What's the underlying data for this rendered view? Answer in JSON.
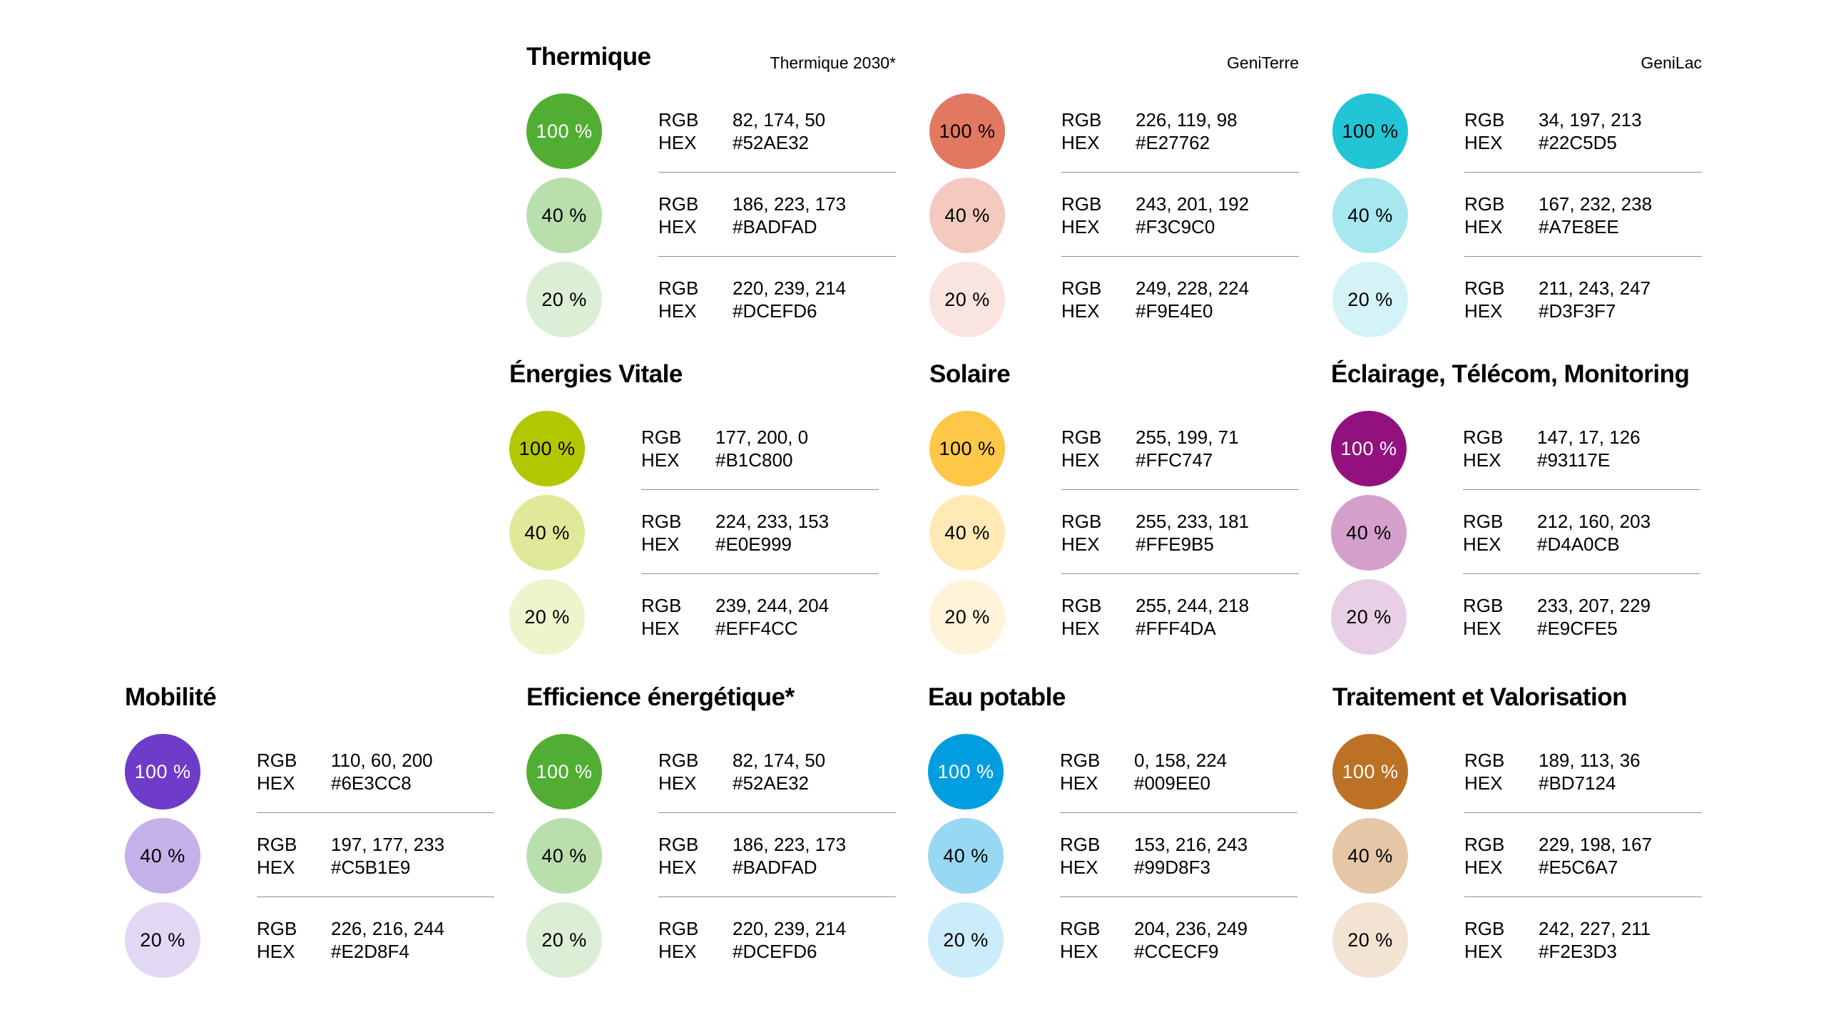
{
  "page": {
    "background": "#FFFFFF",
    "text_color": "#000000",
    "divider_color": "#8F8F8F"
  },
  "labels": {
    "rgb": "RGB",
    "hex": "HEX"
  },
  "palettes": [
    {
      "title": "Thermique",
      "corner_label": "Thermique 2030*",
      "shades": [
        {
          "percent": "100 %",
          "rgb": "82, 174, 50",
          "hex": "#52AE32",
          "label_color": "#FFFFFF"
        },
        {
          "percent": "40 %",
          "rgb": "186, 223, 173",
          "hex": "#BADFAD",
          "label_color": "#000000"
        },
        {
          "percent": "20 %",
          "rgb": "220, 239, 214",
          "hex": "#DCEFD6",
          "label_color": "#000000"
        }
      ]
    },
    {
      "corner_label": "GeniTerre",
      "shades": [
        {
          "percent": "100 %",
          "rgb": "226, 119, 98",
          "hex": "#E27762",
          "label_color": "#000000"
        },
        {
          "percent": "40 %",
          "rgb": "243, 201, 192",
          "hex": "#F3C9C0",
          "label_color": "#000000"
        },
        {
          "percent": "20 %",
          "rgb": "249, 228, 224",
          "hex": "#F9E4E0",
          "label_color": "#000000"
        }
      ]
    },
    {
      "corner_label": "GeniLac",
      "shades": [
        {
          "percent": "100 %",
          "rgb": "34, 197, 213",
          "hex": "#22C5D5",
          "label_color": "#000000"
        },
        {
          "percent": "40 %",
          "rgb": "167, 232, 238",
          "hex": "#A7E8EE",
          "label_color": "#000000"
        },
        {
          "percent": "20 %",
          "rgb": "211, 243, 247",
          "hex": "#D3F3F7",
          "label_color": "#000000"
        }
      ]
    },
    {
      "title": "Énergies Vitale",
      "shades": [
        {
          "percent": "100 %",
          "rgb": "177, 200, 0",
          "hex": "#B1C800",
          "label_color": "#000000"
        },
        {
          "percent": "40 %",
          "rgb": "224, 233, 153",
          "hex": "#E0E999",
          "label_color": "#000000"
        },
        {
          "percent": "20 %",
          "rgb": "239, 244, 204",
          "hex": "#EFF4CC",
          "label_color": "#000000"
        }
      ]
    },
    {
      "title": "Solaire",
      "shades": [
        {
          "percent": "100 %",
          "rgb": "255, 199, 71",
          "hex": "#FFC747",
          "label_color": "#000000"
        },
        {
          "percent": "40 %",
          "rgb": "255, 233, 181",
          "hex": "#FFE9B5",
          "label_color": "#000000"
        },
        {
          "percent": "20 %",
          "rgb": "255, 244, 218",
          "hex": "#FFF4DA",
          "label_color": "#000000"
        }
      ]
    },
    {
      "title": "Éclairage, Télécom, Monitoring",
      "shades": [
        {
          "percent": "100 %",
          "rgb": "147, 17, 126",
          "hex": "#93117E",
          "label_color": "#FFFFFF"
        },
        {
          "percent": "40 %",
          "rgb": "212, 160, 203",
          "hex": "#D4A0CB",
          "label_color": "#000000"
        },
        {
          "percent": "20 %",
          "rgb": "233, 207, 229",
          "hex": "#E9CFE5",
          "label_color": "#000000"
        }
      ]
    },
    {
      "title": "Mobilité",
      "shades": [
        {
          "percent": "100 %",
          "rgb": "110, 60, 200",
          "hex": "#6E3CC8",
          "label_color": "#FFFFFF"
        },
        {
          "percent": "40 %",
          "rgb": "197, 177, 233",
          "hex": "#C5B1E9",
          "label_color": "#000000"
        },
        {
          "percent": "20 %",
          "rgb": "226, 216, 244",
          "hex": "#E2D8F4",
          "label_color": "#000000"
        }
      ]
    },
    {
      "title": "Efficience énergétique*",
      "shades": [
        {
          "percent": "100 %",
          "rgb": "82, 174, 50",
          "hex": "#52AE32",
          "label_color": "#FFFFFF"
        },
        {
          "percent": "40 %",
          "rgb": "186, 223, 173",
          "hex": "#BADFAD",
          "label_color": "#000000"
        },
        {
          "percent": "20 %",
          "rgb": "220, 239, 214",
          "hex": "#DCEFD6",
          "label_color": "#000000"
        }
      ]
    },
    {
      "title": "Eau potable",
      "shades": [
        {
          "percent": "100 %",
          "rgb": "0, 158, 224",
          "hex": "#009EE0",
          "label_color": "#FFFFFF"
        },
        {
          "percent": "40 %",
          "rgb": "153, 216, 243",
          "hex": "#99D8F3",
          "label_color": "#000000"
        },
        {
          "percent": "20 %",
          "rgb": "204, 236, 249",
          "hex": "#CCECF9",
          "label_color": "#000000"
        }
      ]
    },
    {
      "title": "Traitement et Valorisation",
      "shades": [
        {
          "percent": "100 %",
          "rgb": "189, 113, 36",
          "hex": "#BD7124",
          "label_color": "#FFFFFF"
        },
        {
          "percent": "40 %",
          "rgb": "229, 198, 167",
          "hex": "#E5C6A7",
          "label_color": "#000000"
        },
        {
          "percent": "20 %",
          "rgb": "242, 227, 211",
          "hex": "#F2E3D3",
          "label_color": "#000000"
        }
      ]
    }
  ]
}
